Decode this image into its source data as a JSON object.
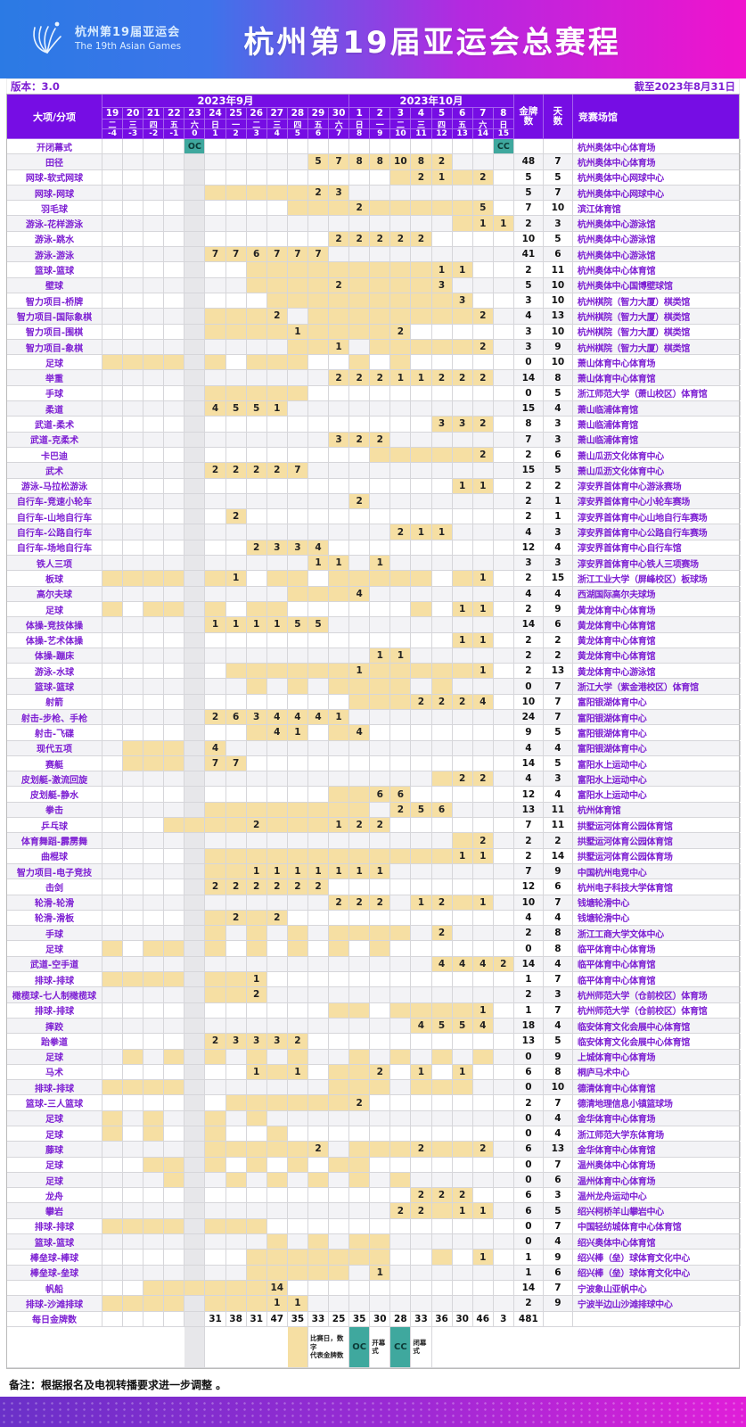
{
  "banner": {
    "logo_title": "杭州第19届亚运会",
    "logo_subtitle": "The 19th Asian Games",
    "title": "杭州第19届亚运会总赛程"
  },
  "meta": {
    "version_label": "版本：3.0",
    "cutoff_label": "截至2023年8月31日",
    "note": "备注：根据报名及电视转播要求进一步调整 。"
  },
  "header": {
    "corner": "大项/分项",
    "month_sep": "2023年9月",
    "month_oct": "2023年10月",
    "gold_label": "金牌数",
    "days_label": "天数",
    "venue_label": "竞赛场馆",
    "sep_dates": [
      19,
      20,
      21,
      22,
      23,
      24,
      25,
      26,
      27,
      28,
      29,
      30
    ],
    "oct_dates": [
      1,
      2,
      3,
      4,
      5,
      6,
      7,
      8
    ],
    "weekdays": [
      "二",
      "三",
      "四",
      "五",
      "六",
      "日",
      "一",
      "二",
      "三",
      "四",
      "五",
      "六",
      "日",
      "一",
      "二",
      "三",
      "四",
      "五",
      "六",
      "日"
    ],
    "day_index": [
      -4,
      -3,
      -2,
      -1,
      0,
      1,
      2,
      3,
      4,
      5,
      6,
      7,
      8,
      9,
      10,
      11,
      12,
      13,
      14,
      15
    ]
  },
  "legend": {
    "match_day_line1": "比赛日，数字",
    "match_day_line2": "代表金牌数",
    "oc": "OC",
    "oc_label_line1": "开幕",
    "oc_label_line2": "式",
    "cc": "CC",
    "cc_label_line1": "闭幕",
    "cc_label_line2": "式"
  },
  "colors": {
    "banner_blue": "#2b7ae4",
    "banner_magenta": "#f013cd",
    "header_purple": "#760de4",
    "accent_purple": "#7d1fd3",
    "cell_yellow": "#f6dfa3",
    "oc_teal": "#3fa89e",
    "rest_grey": "#e7e7ea"
  },
  "rows": [
    {
      "name": "开闭幕式",
      "gold": "",
      "days": "",
      "venue": "杭州奥体中心体育场",
      "special": {
        "4": "OC",
        "19": "CC"
      }
    },
    {
      "name": "田径",
      "gold": "48",
      "days": "7",
      "venue": "杭州奥体中心体育场",
      "medals": {
        "10": "5",
        "11": "7",
        "12": "8",
        "13": "8",
        "14": "10",
        "15": "8",
        "16": "2"
      }
    },
    {
      "name": "网球-软式网球",
      "gold": "5",
      "days": "5",
      "venue": "杭州奥体中心网球中心",
      "shaded": [
        14,
        17
      ],
      "medals": {
        "15": "2",
        "16": "1",
        "18": "2"
      }
    },
    {
      "name": "网球-网球",
      "gold": "5",
      "days": "7",
      "venue": "杭州奥体中心网球中心",
      "shaded": [
        5,
        6,
        7,
        8,
        9
      ],
      "medals": {
        "10": "2",
        "11": "3"
      }
    },
    {
      "name": "羽毛球",
      "gold": "7",
      "days": "10",
      "venue": "滨江体育馆",
      "shaded": [
        9,
        10,
        11,
        13,
        14,
        15,
        16,
        17
      ],
      "medals": {
        "12": "2",
        "18": "5"
      }
    },
    {
      "name": "游泳-花样游泳",
      "gold": "2",
      "days": "3",
      "venue": "杭州奥体中心游泳馆",
      "shaded": [
        17
      ],
      "medals": {
        "18": "1",
        "19": "1"
      }
    },
    {
      "name": "游泳-跳水",
      "gold": "10",
      "days": "5",
      "venue": "杭州奥体中心游泳馆",
      "medals": {
        "11": "2",
        "12": "2",
        "13": "2",
        "14": "2",
        "15": "2"
      }
    },
    {
      "name": "游泳-游泳",
      "gold": "41",
      "days": "6",
      "venue": "杭州奥体中心游泳馆",
      "medals": {
        "5": "7",
        "6": "7",
        "7": "6",
        "8": "7",
        "9": "7",
        "10": "7"
      }
    },
    {
      "name": "篮球-篮球",
      "gold": "2",
      "days": "11",
      "venue": "杭州奥体中心体育馆",
      "shaded": [
        7,
        8,
        9,
        10,
        11,
        12,
        13,
        14,
        15
      ],
      "medals": {
        "16": "1",
        "17": "1"
      }
    },
    {
      "name": "壁球",
      "gold": "5",
      "days": "10",
      "venue": "杭州奥体中心国博壁球馆",
      "shaded": [
        7,
        8,
        9,
        10,
        12,
        13,
        14,
        15
      ],
      "medals": {
        "11": "2",
        "16": "3"
      }
    },
    {
      "name": "智力项目-桥牌",
      "gold": "3",
      "days": "10",
      "venue": "杭州棋院（智力大厦）棋类馆",
      "shaded": [
        8,
        9,
        10,
        11,
        12,
        13,
        14,
        15,
        16
      ],
      "medals": {
        "17": "3"
      }
    },
    {
      "name": "智力项目-国际象棋",
      "gold": "4",
      "days": "13",
      "venue": "杭州棋院（智力大厦）棋类馆",
      "shaded": [
        5,
        6,
        7,
        10,
        11,
        12,
        13,
        14,
        15,
        16,
        17
      ],
      "medals": {
        "8": "2",
        "18": "2"
      }
    },
    {
      "name": "智力项目-围棋",
      "gold": "3",
      "days": "10",
      "venue": "杭州棋院（智力大厦）棋类馆",
      "shaded": [
        5,
        6,
        7,
        8,
        10,
        11,
        12,
        13
      ],
      "medals": {
        "9": "1",
        "14": "2"
      }
    },
    {
      "name": "智力项目-象棋",
      "gold": "3",
      "days": "9",
      "venue": "杭州棋院（智力大厦）棋类馆",
      "shaded": [
        9,
        10,
        13,
        14,
        15,
        16,
        17
      ],
      "medals": {
        "11": "1",
        "18": "2"
      }
    },
    {
      "name": "足球",
      "gold": "0",
      "days": "10",
      "venue": "萧山体育中心体育场",
      "shaded": [
        0,
        1,
        2,
        3,
        5,
        7,
        8,
        9,
        12,
        14
      ]
    },
    {
      "name": "举重",
      "gold": "14",
      "days": "8",
      "venue": "萧山体育中心体育馆",
      "medals": {
        "11": "2",
        "12": "2",
        "13": "2",
        "14": "1",
        "15": "1",
        "16": "2",
        "17": "2",
        "18": "2"
      }
    },
    {
      "name": "手球",
      "gold": "0",
      "days": "5",
      "venue": "浙江师范大学（萧山校区）体育馆",
      "shaded": [
        5,
        6,
        7,
        8,
        9
      ]
    },
    {
      "name": "柔道",
      "gold": "15",
      "days": "4",
      "venue": "萧山临浦体育馆",
      "medals": {
        "5": "4",
        "6": "5",
        "7": "5",
        "8": "1"
      }
    },
    {
      "name": "武道-柔术",
      "gold": "8",
      "days": "3",
      "venue": "萧山临浦体育馆",
      "medals": {
        "16": "3",
        "17": "3",
        "18": "2"
      }
    },
    {
      "name": "武道-克柔术",
      "gold": "7",
      "days": "3",
      "venue": "萧山临浦体育馆",
      "medals": {
        "11": "3",
        "12": "2",
        "13": "2"
      }
    },
    {
      "name": "卡巴迪",
      "gold": "2",
      "days": "6",
      "venue": "萧山瓜沥文化体育中心",
      "shaded": [
        13,
        14,
        15,
        16,
        17
      ],
      "medals": {
        "18": "2"
      }
    },
    {
      "name": "武术",
      "gold": "15",
      "days": "5",
      "venue": "萧山瓜沥文化体育中心",
      "medals": {
        "5": "2",
        "6": "2",
        "7": "2",
        "8": "2",
        "9": "7"
      }
    },
    {
      "name": "游泳-马拉松游泳",
      "gold": "2",
      "days": "2",
      "venue": "淳安界首体育中心游泳赛场",
      "medals": {
        "17": "1",
        "18": "1"
      }
    },
    {
      "name": "自行车-竞速小轮车",
      "gold": "2",
      "days": "1",
      "venue": "淳安界首体育中心小轮车赛场",
      "medals": {
        "12": "2"
      }
    },
    {
      "name": "自行车-山地自行车",
      "gold": "2",
      "days": "1",
      "venue": "淳安界首体育中心山地自行车赛场",
      "medals": {
        "6": "2"
      }
    },
    {
      "name": "自行车-公路自行车",
      "gold": "4",
      "days": "3",
      "venue": "淳安界首体育中心公路自行车赛场",
      "medals": {
        "14": "2",
        "15": "1",
        "16": "1"
      }
    },
    {
      "name": "自行车-场地自行车",
      "gold": "12",
      "days": "4",
      "venue": "淳安界首体育中心自行车馆",
      "medals": {
        "7": "2",
        "8": "3",
        "9": "3",
        "10": "4"
      }
    },
    {
      "name": "铁人三项",
      "gold": "3",
      "days": "3",
      "venue": "淳安界首体育中心铁人三项赛场",
      "medals": {
        "10": "1",
        "11": "1",
        "13": "1"
      }
    },
    {
      "name": "板球",
      "gold": "2",
      "days": "15",
      "venue": "浙江工业大学（屏峰校区）板球场",
      "shaded": [
        0,
        1,
        2,
        3,
        5,
        8,
        9,
        11,
        12,
        13,
        14,
        15,
        17
      ],
      "medals": {
        "6": "1",
        "18": "1"
      }
    },
    {
      "name": "高尔夫球",
      "gold": "4",
      "days": "4",
      "venue": "西湖国际高尔夫球场",
      "shaded": [
        9,
        10,
        11
      ],
      "medals": {
        "12": "4"
      }
    },
    {
      "name": "足球",
      "gold": "2",
      "days": "9",
      "venue": "黄龙体育中心体育场",
      "shaded": [
        0,
        2,
        3,
        5,
        7,
        8,
        15
      ],
      "medals": {
        "17": "1",
        "18": "1"
      }
    },
    {
      "name": "体操-竞技体操",
      "gold": "14",
      "days": "6",
      "venue": "黄龙体育中心体育馆",
      "medals": {
        "5": "1",
        "6": "1",
        "7": "1",
        "8": "1",
        "9": "5",
        "10": "5"
      }
    },
    {
      "name": "体操-艺术体操",
      "gold": "2",
      "days": "2",
      "venue": "黄龙体育中心体育馆",
      "medals": {
        "17": "1",
        "18": "1"
      }
    },
    {
      "name": "体操-蹦床",
      "gold": "2",
      "days": "2",
      "venue": "黄龙体育中心体育馆",
      "medals": {
        "13": "1",
        "14": "1"
      }
    },
    {
      "name": "游泳-水球",
      "gold": "2",
      "days": "13",
      "venue": "黄龙体育中心游泳馆",
      "shaded": [
        6,
        7,
        8,
        9,
        10,
        11,
        13,
        14,
        15,
        16,
        17
      ],
      "medals": {
        "12": "1",
        "18": "1"
      }
    },
    {
      "name": "篮球-篮球",
      "gold": "0",
      "days": "7",
      "venue": "浙江大学（紫金港校区）体育馆",
      "shaded": [
        7,
        9,
        11,
        12,
        13,
        14,
        16
      ]
    },
    {
      "name": "射箭",
      "gold": "10",
      "days": "7",
      "venue": "富阳银湖体育中心",
      "shaded": [
        12,
        13,
        14
      ],
      "medals": {
        "15": "2",
        "16": "2",
        "17": "2",
        "18": "4"
      }
    },
    {
      "name": "射击-步枪、手枪",
      "gold": "24",
      "days": "7",
      "venue": "富阳银湖体育中心",
      "medals": {
        "5": "2",
        "6": "6",
        "7": "3",
        "8": "4",
        "9": "4",
        "10": "4",
        "11": "1"
      }
    },
    {
      "name": "射击-飞碟",
      "gold": "9",
      "days": "5",
      "venue": "富阳银湖体育中心",
      "shaded": [
        7,
        11
      ],
      "medals": {
        "8": "4",
        "9": "1",
        "12": "4"
      }
    },
    {
      "name": "现代五项",
      "gold": "4",
      "days": "4",
      "venue": "富阳银湖体育中心",
      "shaded": [
        1,
        2,
        3
      ],
      "medals": {
        "5": "4"
      }
    },
    {
      "name": "赛艇",
      "gold": "14",
      "days": "5",
      "venue": "富阳水上运动中心",
      "shaded": [
        1,
        2,
        3
      ],
      "medals": {
        "5": "7",
        "6": "7"
      }
    },
    {
      "name": "皮划艇-激流回旋",
      "gold": "4",
      "days": "3",
      "venue": "富阳水上运动中心",
      "shaded": [
        16
      ],
      "medals": {
        "17": "2",
        "18": "2"
      }
    },
    {
      "name": "皮划艇-静水",
      "gold": "12",
      "days": "4",
      "venue": "富阳水上运动中心",
      "shaded": [
        11,
        12
      ],
      "medals": {
        "13": "6",
        "14": "6"
      }
    },
    {
      "name": "拳击",
      "gold": "13",
      "days": "11",
      "venue": "杭州体育馆",
      "shaded": [
        5,
        6,
        7,
        8,
        9,
        10,
        11,
        12
      ],
      "medals": {
        "14": "2",
        "15": "5",
        "16": "6"
      }
    },
    {
      "name": "乒乓球",
      "gold": "7",
      "days": "11",
      "venue": "拱墅运河体育公园体育馆",
      "shaded": [
        3,
        4,
        5,
        6,
        8,
        9,
        10
      ],
      "medals": {
        "7": "2",
        "11": "1",
        "12": "2",
        "13": "2"
      }
    },
    {
      "name": "体育舞蹈-霹雳舞",
      "gold": "2",
      "days": "2",
      "venue": "拱墅运河体育公园体育馆",
      "shaded": [
        17
      ],
      "medals": {
        "18": "2"
      }
    },
    {
      "name": "曲棍球",
      "gold": "2",
      "days": "14",
      "venue": "拱墅运河体育公园体育场",
      "shaded": [
        5,
        6,
        7,
        8,
        9,
        10,
        11,
        12,
        13,
        14,
        15,
        16
      ],
      "medals": {
        "17": "1",
        "18": "1"
      }
    },
    {
      "name": "智力项目-电子竞技",
      "gold": "7",
      "days": "9",
      "venue": "中国杭州电竞中心",
      "shaded": [
        5,
        6
      ],
      "medals": {
        "7": "1",
        "8": "1",
        "9": "1",
        "10": "1",
        "11": "1",
        "12": "1",
        "13": "1"
      }
    },
    {
      "name": "击剑",
      "gold": "12",
      "days": "6",
      "venue": "杭州电子科技大学体育馆",
      "medals": {
        "5": "2",
        "6": "2",
        "7": "2",
        "8": "2",
        "9": "2",
        "10": "2"
      }
    },
    {
      "name": "轮滑-轮滑",
      "gold": "10",
      "days": "7",
      "venue": "钱塘轮滑中心",
      "shaded": [
        17
      ],
      "medals": {
        "11": "2",
        "12": "2",
        "13": "2",
        "15": "1",
        "16": "2",
        "18": "1"
      }
    },
    {
      "name": "轮滑-滑板",
      "gold": "4",
      "days": "4",
      "venue": "钱塘轮滑中心",
      "shaded": [
        5,
        7
      ],
      "medals": {
        "6": "2",
        "8": "2"
      }
    },
    {
      "name": "手球",
      "gold": "2",
      "days": "8",
      "venue": "浙江工商大学文体中心",
      "shaded": [
        5,
        7,
        9,
        11,
        12,
        13,
        14
      ],
      "medals": {
        "16": "2"
      }
    },
    {
      "name": "足球",
      "gold": "0",
      "days": "8",
      "venue": "临平体育中心体育场",
      "shaded": [
        0,
        2,
        3,
        5,
        7,
        9,
        11,
        13
      ]
    },
    {
      "name": "武道-空手道",
      "gold": "14",
      "days": "4",
      "venue": "临平体育中心体育馆",
      "medals": {
        "16": "4",
        "17": "4",
        "18": "4",
        "19": "2"
      }
    },
    {
      "name": "排球-排球",
      "gold": "1",
      "days": "7",
      "venue": "临平体育中心体育馆",
      "shaded": [
        0,
        1,
        2,
        3,
        5,
        6
      ],
      "medals": {
        "7": "1"
      }
    },
    {
      "name": "橄榄球-七人制橄榄球",
      "gold": "2",
      "days": "3",
      "venue": "杭州师范大学（仓前校区）体育场",
      "shaded": [
        5,
        6
      ],
      "medals": {
        "7": "2"
      }
    },
    {
      "name": "排球-排球",
      "gold": "1",
      "days": "7",
      "venue": "杭州师范大学（仓前校区）体育馆",
      "shaded": [
        11,
        12,
        14,
        15,
        16,
        17
      ],
      "medals": {
        "18": "1"
      }
    },
    {
      "name": "摔跤",
      "gold": "18",
      "days": "4",
      "venue": "临安体育文化会展中心体育馆",
      "medals": {
        "15": "4",
        "16": "5",
        "17": "5",
        "18": "4"
      }
    },
    {
      "name": "跆拳道",
      "gold": "13",
      "days": "5",
      "venue": "临安体育文化会展中心体育馆",
      "medals": {
        "5": "2",
        "6": "3",
        "7": "3",
        "8": "3",
        "9": "2"
      }
    },
    {
      "name": "足球",
      "gold": "0",
      "days": "9",
      "venue": "上城体育中心体育场",
      "shaded": [
        1,
        3,
        5,
        7,
        9,
        12,
        14,
        16,
        18
      ]
    },
    {
      "name": "马术",
      "gold": "6",
      "days": "8",
      "venue": "桐庐马术中心",
      "shaded": [
        8,
        11,
        12
      ],
      "medals": {
        "7": "1",
        "9": "1",
        "13": "2",
        "15": "1",
        "17": "1"
      }
    },
    {
      "name": "排球-排球",
      "gold": "0",
      "days": "10",
      "venue": "德清体育中心体育馆",
      "shaded": [
        0,
        1,
        2,
        3,
        11,
        12,
        13,
        15,
        16,
        17
      ]
    },
    {
      "name": "篮球-三人篮球",
      "gold": "2",
      "days": "7",
      "venue": "德清地理信息小镇篮球场",
      "shaded": [
        6,
        7,
        8,
        9,
        10,
        11
      ],
      "medals": {
        "12": "2"
      }
    },
    {
      "name": "足球",
      "gold": "0",
      "days": "4",
      "venue": "金华体育中心体育场",
      "shaded": [
        0,
        2,
        5,
        7
      ]
    },
    {
      "name": "足球",
      "gold": "0",
      "days": "4",
      "venue": "浙江师范大学东体育场",
      "shaded": [
        0,
        2,
        5,
        8
      ]
    },
    {
      "name": "藤球",
      "gold": "6",
      "days": "13",
      "venue": "金华体育中心体育馆",
      "shaded": [
        5,
        6,
        7,
        8,
        9,
        12,
        13,
        14,
        16,
        17
      ],
      "medals": {
        "10": "2",
        "15": "2",
        "18": "2"
      }
    },
    {
      "name": "足球",
      "gold": "0",
      "days": "7",
      "venue": "温州奥体中心体育场",
      "shaded": [
        2,
        3,
        5,
        7,
        9,
        11,
        12
      ]
    },
    {
      "name": "足球",
      "gold": "0",
      "days": "6",
      "venue": "温州体育中心体育场",
      "shaded": [
        3,
        6,
        8,
        10,
        12,
        14
      ]
    },
    {
      "name": "龙舟",
      "gold": "6",
      "days": "3",
      "venue": "温州龙舟运动中心",
      "medals": {
        "15": "2",
        "16": "2",
        "17": "2"
      }
    },
    {
      "name": "攀岩",
      "gold": "6",
      "days": "5",
      "venue": "绍兴柯桥羊山攀岩中心",
      "shaded": [
        16
      ],
      "medals": {
        "14": "2",
        "15": "2",
        "17": "1",
        "18": "1"
      }
    },
    {
      "name": "排球-排球",
      "gold": "0",
      "days": "7",
      "venue": "中国轻纺城体育中心体育馆",
      "shaded": [
        0,
        1,
        2,
        3,
        5,
        6,
        7
      ]
    },
    {
      "name": "篮球-篮球",
      "gold": "0",
      "days": "4",
      "venue": "绍兴奥体中心体育馆",
      "shaded": [
        8,
        10,
        12,
        13
      ]
    },
    {
      "name": "棒垒球-棒球",
      "gold": "1",
      "days": "9",
      "venue": "绍兴棒（垒）球体育文化中心",
      "shaded": [
        7,
        8,
        9,
        10,
        11,
        12,
        13,
        16
      ],
      "medals": {
        "18": "1"
      }
    },
    {
      "name": "棒垒球-垒球",
      "gold": "1",
      "days": "6",
      "venue": "绍兴棒（垒）球体育文化中心",
      "shaded": [
        7,
        8,
        9,
        10,
        11
      ],
      "medals": {
        "13": "1"
      }
    },
    {
      "name": "帆船",
      "gold": "14",
      "days": "7",
      "venue": "宁波象山亚帆中心",
      "shaded": [
        2,
        3,
        4,
        5,
        6,
        7
      ],
      "medals": {
        "8": "14"
      }
    },
    {
      "name": "排球-沙滩排球",
      "gold": "2",
      "days": "9",
      "venue": "宁波半边山沙滩排球中心",
      "shaded": [
        0,
        1,
        2,
        3,
        5,
        6,
        7
      ],
      "medals": {
        "8": "1",
        "9": "1"
      }
    },
    {
      "name": "每日金牌数",
      "gold": "481",
      "days": "",
      "venue": "",
      "type": "daily",
      "medals": {
        "5": "31",
        "6": "38",
        "7": "31",
        "8": "47",
        "9": "35",
        "10": "33",
        "11": "25",
        "12": "35",
        "13": "30",
        "14": "28",
        "15": "33",
        "16": "36",
        "17": "30",
        "18": "46",
        "19": "3"
      }
    }
  ]
}
